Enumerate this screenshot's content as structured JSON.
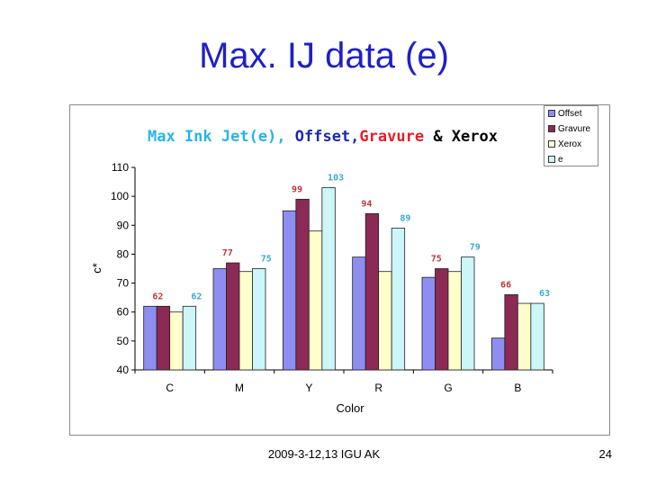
{
  "slide": {
    "title": "Max. IJ data (e)",
    "footer": "2009-3-12,13 IGU AK",
    "page_number": "24"
  },
  "colors": {
    "title": "#1f1fc8",
    "offset": "#8e8ef2",
    "gravure": "#8b2a55",
    "xerox": "#ffffcc",
    "e": "#ccf6f8",
    "label_red": "#c0353a",
    "label_cyan": "#39aacc",
    "chart_title_cyan": "#28b4e6",
    "chart_title_darkblue": "#1f2aa8",
    "chart_title_red": "#e0202a"
  },
  "chart_title_parts": [
    {
      "text": "Max Ink Jet(e), ",
      "color": "#28b4e6"
    },
    {
      "text": "Offset,",
      "color": "#1f2aa8"
    },
    {
      "text": "Gravure",
      "color": "#e0202a"
    },
    {
      "text": " & Xerox",
      "color": "#000000"
    }
  ],
  "chart_data": {
    "type": "bar",
    "categories": [
      "C",
      "M",
      "Y",
      "R",
      "G",
      "B"
    ],
    "series": [
      {
        "name": "Offset",
        "values": [
          62,
          75,
          95,
          79,
          72,
          51
        ]
      },
      {
        "name": "Gravure",
        "values": [
          62,
          77,
          99,
          94,
          75,
          66
        ]
      },
      {
        "name": "Xerox",
        "values": [
          60,
          74,
          88,
          74,
          74,
          63
        ]
      },
      {
        "name": "e",
        "values": [
          62,
          75,
          103,
          89,
          79,
          63
        ]
      }
    ],
    "data_labels": [
      {
        "series": "Gravure",
        "category": "C",
        "text": "62"
      },
      {
        "series": "e",
        "category": "C",
        "text": "62"
      },
      {
        "series": "Gravure",
        "category": "M",
        "text": "77"
      },
      {
        "series": "e",
        "category": "M",
        "text": "75"
      },
      {
        "series": "Gravure",
        "category": "Y",
        "text": "99"
      },
      {
        "series": "e",
        "category": "Y",
        "text": "103"
      },
      {
        "series": "Gravure",
        "category": "R",
        "text": "94"
      },
      {
        "series": "e",
        "category": "R",
        "text": "89"
      },
      {
        "series": "Gravure",
        "category": "G",
        "text": "75"
      },
      {
        "series": "e",
        "category": "G",
        "text": "79"
      },
      {
        "series": "Gravure",
        "category": "B",
        "text": "66"
      },
      {
        "series": "e",
        "category": "B",
        "text": "63"
      }
    ],
    "xlabel": "Color",
    "ylabel": "c*",
    "ylim": [
      40,
      110
    ],
    "yticks": [
      40,
      50,
      60,
      70,
      80,
      90,
      100,
      110
    ],
    "grid": false,
    "legend_position": "top-right"
  }
}
